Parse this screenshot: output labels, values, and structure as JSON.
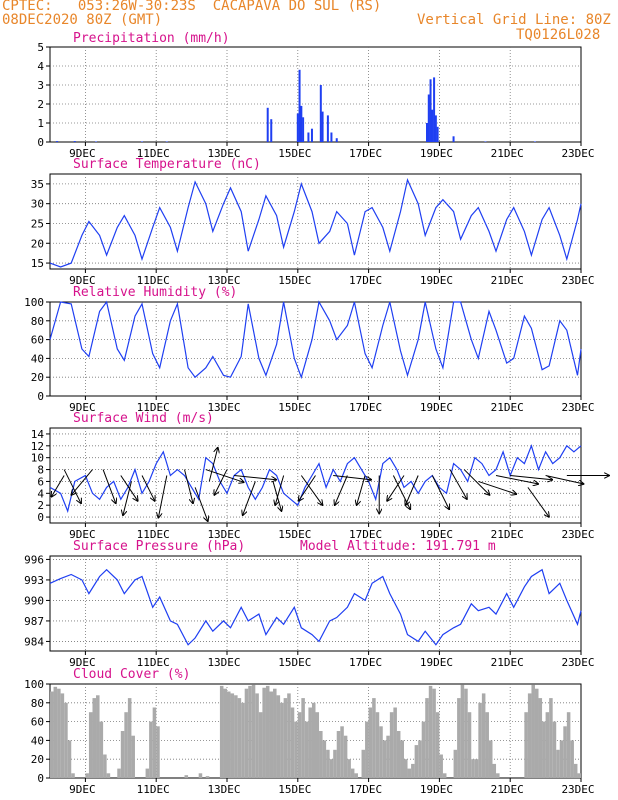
{
  "header": {
    "line1": "CPTEC:   053:26W-30:23S  CACAPAVA DO SUL (RS)",
    "line2_left": "08DEC2020 80Z (GMT)",
    "line2_right": "Vertical Grid Line: 80Z",
    "line3_right": "TQ0126L028"
  },
  "x_ticks": [
    "9DEC",
    "11DEC",
    "13DEC",
    "15DEC",
    "17DEC",
    "19DEC",
    "21DEC",
    "23DEC"
  ],
  "chart_data": [
    {
      "type": "bar",
      "title": "Precipitation (mm/h)",
      "ylim": [
        0,
        5
      ],
      "yticks": [
        "0",
        "1",
        "2",
        "3",
        "4",
        "5"
      ],
      "color": "#1f3ff2",
      "grid": true,
      "values": [
        [
          8.2,
          0.05
        ],
        [
          8.7,
          0.05
        ],
        [
          9.3,
          0.03
        ],
        [
          10.6,
          0.03
        ],
        [
          11.3,
          0.03
        ],
        [
          14.15,
          1.8
        ],
        [
          14.25,
          1.2
        ],
        [
          15.0,
          1.5
        ],
        [
          15.05,
          3.8
        ],
        [
          15.1,
          1.9
        ],
        [
          15.15,
          1.3
        ],
        [
          15.3,
          0.5
        ],
        [
          15.4,
          0.7
        ],
        [
          15.65,
          3.0
        ],
        [
          15.7,
          1.6
        ],
        [
          15.85,
          1.4
        ],
        [
          15.95,
          0.5
        ],
        [
          16.1,
          0.2
        ],
        [
          18.65,
          1.0
        ],
        [
          18.7,
          2.5
        ],
        [
          18.75,
          3.3
        ],
        [
          18.8,
          1.7
        ],
        [
          18.85,
          3.4
        ],
        [
          18.9,
          1.4
        ],
        [
          18.95,
          0.8
        ],
        [
          19.4,
          0.3
        ],
        [
          20.3,
          0.03
        ],
        [
          21.7,
          0.03
        ]
      ]
    },
    {
      "type": "line",
      "title": "Surface Temperature (nC)",
      "ylim": [
        13.5,
        37.5
      ],
      "yticks": [
        "15",
        "20",
        "25",
        "30",
        "35"
      ],
      "color": "#1f3ff2",
      "grid": true,
      "x": [
        8.0,
        8.3,
        8.6,
        8.9,
        9.1,
        9.4,
        9.6,
        9.9,
        10.1,
        10.4,
        10.6,
        10.9,
        11.1,
        11.4,
        11.6,
        11.9,
        12.1,
        12.4,
        12.6,
        12.9,
        13.1,
        13.4,
        13.6,
        13.9,
        14.1,
        14.4,
        14.6,
        14.9,
        15.1,
        15.4,
        15.6,
        15.9,
        16.1,
        16.4,
        16.6,
        16.9,
        17.1,
        17.4,
        17.6,
        17.9,
        18.1,
        18.4,
        18.6,
        18.9,
        19.1,
        19.4,
        19.6,
        19.9,
        20.1,
        20.4,
        20.6,
        20.9,
        21.1,
        21.4,
        21.6,
        21.9,
        22.1,
        22.4,
        22.6,
        22.9,
        23.0
      ],
      "y": [
        15,
        14,
        15,
        22,
        25.5,
        22,
        17,
        24,
        27,
        22,
        16,
        24,
        29,
        24,
        18,
        29,
        35.5,
        30,
        23,
        30,
        34,
        28,
        18,
        26,
        32,
        27,
        19,
        28,
        35,
        28,
        20,
        23,
        28,
        25,
        17,
        28,
        29,
        24,
        18,
        28,
        36,
        30,
        22,
        29,
        31,
        28,
        21,
        27,
        29,
        23,
        18,
        26,
        29,
        23,
        17,
        26,
        29,
        22,
        16,
        26,
        30
      ]
    },
    {
      "type": "line",
      "title": "Relative Humidity (%)",
      "ylim": [
        0,
        100
      ],
      "yticks": [
        "0",
        "20",
        "40",
        "60",
        "80",
        "100"
      ],
      "color": "#1f3ff2",
      "grid": true,
      "x": [
        8.0,
        8.3,
        8.6,
        8.9,
        9.1,
        9.4,
        9.6,
        9.9,
        10.1,
        10.4,
        10.6,
        10.9,
        11.1,
        11.4,
        11.6,
        11.9,
        12.1,
        12.4,
        12.6,
        12.9,
        13.1,
        13.4,
        13.6,
        13.9,
        14.1,
        14.4,
        14.6,
        14.9,
        15.1,
        15.4,
        15.6,
        15.9,
        16.1,
        16.4,
        16.6,
        16.9,
        17.1,
        17.4,
        17.6,
        17.9,
        18.1,
        18.4,
        18.6,
        18.9,
        19.1,
        19.4,
        19.6,
        19.9,
        20.1,
        20.4,
        20.6,
        20.9,
        21.1,
        21.4,
        21.6,
        21.9,
        22.1,
        22.4,
        22.6,
        22.9,
        23.0
      ],
      "y": [
        60,
        100,
        98,
        50,
        42,
        90,
        100,
        50,
        38,
        85,
        98,
        45,
        30,
        80,
        98,
        30,
        20,
        30,
        42,
        22,
        20,
        42,
        98,
        40,
        22,
        55,
        100,
        40,
        20,
        60,
        100,
        80,
        60,
        75,
        100,
        45,
        30,
        75,
        100,
        48,
        22,
        60,
        100,
        50,
        30,
        100,
        100,
        60,
        40,
        90,
        70,
        35,
        40,
        85,
        72,
        28,
        32,
        80,
        70,
        22,
        50
      ]
    },
    {
      "type": "line",
      "title": "Surface Wind (m/s)",
      "ylim": [
        -1,
        15
      ],
      "yticks": [
        "0",
        "2",
        "4",
        "6",
        "8",
        "10",
        "12",
        "14"
      ],
      "color": "#1f3ff2",
      "grid": true,
      "x": [
        8.0,
        8.3,
        8.5,
        8.7,
        9.0,
        9.2,
        9.4,
        9.6,
        9.8,
        10.0,
        10.2,
        10.4,
        10.6,
        10.8,
        11.0,
        11.2,
        11.4,
        11.6,
        11.8,
        12.0,
        12.2,
        12.4,
        12.6,
        12.8,
        13.0,
        13.2,
        13.4,
        13.6,
        13.8,
        14.0,
        14.2,
        14.4,
        14.6,
        14.8,
        15.0,
        15.2,
        15.4,
        15.6,
        15.8,
        16.0,
        16.2,
        16.4,
        16.6,
        16.8,
        17.0,
        17.2,
        17.4,
        17.6,
        17.8,
        18.0,
        18.2,
        18.4,
        18.6,
        18.8,
        19.0,
        19.2,
        19.4,
        19.6,
        19.8,
        20.0,
        20.2,
        20.4,
        20.6,
        20.8,
        21.0,
        21.2,
        21.4,
        21.6,
        21.8,
        22.0,
        22.2,
        22.4,
        22.6,
        22.8,
        23.0
      ],
      "y": [
        5,
        4,
        1,
        6,
        7,
        4,
        3,
        5,
        6,
        3,
        5,
        8,
        4,
        6,
        9,
        11,
        7,
        8,
        7,
        5,
        3,
        10,
        9,
        6,
        4,
        7,
        8,
        5,
        3,
        5,
        8,
        7,
        4,
        3,
        2,
        5,
        7,
        9,
        5,
        8,
        6,
        9,
        10,
        8,
        6,
        3,
        9,
        10,
        8,
        5,
        6,
        4,
        6,
        7,
        5,
        4,
        9,
        8,
        6,
        10,
        9,
        7,
        8,
        11,
        7,
        10,
        9,
        12,
        8,
        11,
        9,
        10,
        12,
        11,
        12
      ],
      "vectors": [
        [
          8.4,
          7,
          -0.3,
          -0.5
        ],
        [
          8.4,
          8,
          0.4,
          -0.8
        ],
        [
          9.2,
          8,
          -0.5,
          -0.6
        ],
        [
          9.5,
          8,
          0.3,
          -0.8
        ],
        [
          10.0,
          7,
          0.4,
          -0.6
        ],
        [
          10.3,
          6,
          -0.2,
          -0.8
        ],
        [
          10.6,
          7,
          0.3,
          -0.6
        ],
        [
          11.3,
          7,
          -0.2,
          -1.0
        ],
        [
          11.8,
          8,
          0.2,
          -0.8
        ],
        [
          12.1,
          5,
          0.3,
          -0.8
        ],
        [
          12.4,
          8,
          0.9,
          -0.3
        ],
        [
          12.5,
          6,
          0.2,
          0.8
        ],
        [
          13.0,
          8,
          -0.3,
          -0.6
        ],
        [
          13.2,
          7,
          1.0,
          -0.1
        ],
        [
          13.8,
          6,
          -0.3,
          -0.8
        ],
        [
          14.3,
          6,
          0.2,
          -0.7
        ],
        [
          14.6,
          7,
          -0.2,
          -0.7
        ],
        [
          15.1,
          7,
          0.5,
          -0.7
        ],
        [
          15.5,
          7,
          -0.4,
          -0.6
        ],
        [
          16.0,
          7,
          0.9,
          -0.1
        ],
        [
          16.4,
          7,
          -0.3,
          -0.7
        ],
        [
          16.9,
          7,
          -0.2,
          -0.7
        ],
        [
          17.3,
          7,
          0.0,
          -0.9
        ],
        [
          17.7,
          7,
          0.4,
          -0.8
        ],
        [
          18.0,
          7,
          -0.4,
          -0.6
        ],
        [
          18.4,
          7,
          -0.3,
          -0.7
        ],
        [
          18.8,
          7,
          0.4,
          -0.8
        ],
        [
          19.3,
          8,
          0.4,
          -0.7
        ],
        [
          19.7,
          8,
          0.6,
          -0.6
        ],
        [
          20.1,
          6,
          0.9,
          -0.3
        ],
        [
          20.6,
          7,
          1.0,
          -0.2
        ],
        [
          21.0,
          7,
          1.0,
          -0.1
        ],
        [
          21.5,
          5,
          0.5,
          -0.7
        ],
        [
          22.0,
          7,
          0.9,
          -0.2
        ],
        [
          22.6,
          7,
          1.0,
          0.0
        ]
      ]
    },
    {
      "type": "line",
      "title": "Surface Pressure (hPa)",
      "annotation": "Model Altitude: 191.791 m",
      "ylim": [
        982.6,
        996.5
      ],
      "yticks": [
        "984",
        "987",
        "990",
        "993",
        "996"
      ],
      "color": "#1f3ff2",
      "grid": true,
      "x": [
        8.0,
        8.3,
        8.6,
        8.9,
        9.1,
        9.4,
        9.6,
        9.9,
        10.1,
        10.4,
        10.6,
        10.9,
        11.1,
        11.4,
        11.6,
        11.9,
        12.1,
        12.4,
        12.6,
        12.9,
        13.1,
        13.4,
        13.6,
        13.9,
        14.1,
        14.4,
        14.6,
        14.9,
        15.1,
        15.4,
        15.6,
        15.9,
        16.1,
        16.4,
        16.6,
        16.9,
        17.1,
        17.4,
        17.6,
        17.9,
        18.1,
        18.4,
        18.6,
        18.9,
        19.1,
        19.4,
        19.6,
        19.9,
        20.1,
        20.4,
        20.6,
        20.9,
        21.1,
        21.4,
        21.6,
        21.9,
        22.1,
        22.4,
        22.6,
        22.9,
        23.0
      ],
      "y": [
        992.5,
        993.2,
        993.8,
        993.0,
        991.0,
        993.5,
        994.5,
        993.0,
        991.0,
        993.0,
        993.5,
        989.0,
        990.5,
        987.0,
        986.5,
        983.5,
        984.5,
        987.0,
        985.5,
        987.0,
        986.0,
        989.0,
        987.0,
        988.0,
        985.0,
        987.5,
        986.5,
        989.0,
        986.0,
        985.0,
        984.0,
        987.0,
        987.5,
        989.0,
        991.0,
        990.0,
        992.5,
        993.5,
        991.0,
        988.0,
        985.0,
        984.0,
        985.5,
        983.5,
        985.0,
        986.0,
        986.5,
        989.5,
        988.5,
        989.0,
        988.0,
        991.0,
        989.0,
        992.0,
        993.5,
        994.5,
        991.0,
        992.5,
        990.0,
        986.5,
        988.5
      ]
    },
    {
      "type": "bar",
      "title": "Cloud Cover (%)",
      "ylim": [
        0,
        100
      ],
      "yticks": [
        "0",
        "20",
        "40",
        "60",
        "80",
        "100"
      ],
      "color": "#aaaaaa",
      "grid": true,
      "x": [
        8.0,
        8.1,
        8.2,
        8.3,
        8.4,
        8.5,
        8.6,
        8.7,
        8.8,
        8.9,
        9.0,
        9.1,
        9.2,
        9.3,
        9.4,
        9.5,
        9.6,
        9.7,
        9.8,
        9.9,
        10.0,
        10.1,
        10.2,
        10.3,
        10.4,
        10.5,
        10.6,
        10.7,
        10.8,
        10.9,
        11.0,
        11.1,
        11.2,
        11.3,
        11.4,
        11.5,
        11.6,
        11.7,
        11.8,
        11.9,
        12.0,
        12.1,
        12.2,
        12.3,
        12.4,
        12.5,
        12.6,
        12.7,
        12.8,
        12.9,
        13.0,
        13.1,
        13.2,
        13.3,
        13.4,
        13.5,
        13.6,
        13.7,
        13.8,
        13.9,
        14.0,
        14.1,
        14.2,
        14.3,
        14.4,
        14.5,
        14.6,
        14.7,
        14.8,
        14.9,
        15.0,
        15.1,
        15.2,
        15.3,
        15.4,
        15.5,
        15.6,
        15.7,
        15.8,
        15.9,
        16.0,
        16.1,
        16.2,
        16.3,
        16.4,
        16.5,
        16.6,
        16.7,
        16.8,
        16.9,
        17.0,
        17.1,
        17.2,
        17.3,
        17.4,
        17.5,
        17.6,
        17.7,
        17.8,
        17.9,
        18.0,
        18.1,
        18.2,
        18.3,
        18.4,
        18.5,
        18.6,
        18.7,
        18.8,
        18.9,
        19.0,
        19.1,
        19.2,
        19.3,
        19.4,
        19.5,
        19.6,
        19.7,
        19.8,
        19.9,
        20.0,
        20.1,
        20.2,
        20.3,
        20.4,
        20.5,
        20.6,
        20.7,
        20.8,
        20.9,
        21.0,
        21.1,
        21.2,
        21.3,
        21.4,
        21.5,
        21.6,
        21.7,
        21.8,
        21.9,
        22.0,
        22.1,
        22.2,
        22.3,
        22.4,
        22.5,
        22.6,
        22.7,
        22.8,
        22.9
      ],
      "values": [
        92,
        97,
        95,
        90,
        80,
        40,
        5,
        0,
        0,
        0,
        5,
        70,
        85,
        88,
        60,
        25,
        5,
        0,
        0,
        10,
        50,
        70,
        85,
        45,
        0,
        0,
        0,
        10,
        60,
        75,
        55,
        0,
        0,
        0,
        0,
        0,
        0,
        0,
        3,
        0,
        0,
        0,
        5,
        0,
        2,
        0,
        0,
        0,
        98,
        95,
        92,
        90,
        88,
        85,
        80,
        95,
        98,
        99,
        90,
        70,
        96,
        98,
        92,
        95,
        88,
        80,
        85,
        90,
        75,
        60,
        70,
        85,
        60,
        75,
        80,
        70,
        50,
        40,
        30,
        20,
        30,
        50,
        55,
        45,
        20,
        10,
        5,
        0,
        30,
        60,
        75,
        85,
        70,
        55,
        40,
        45,
        70,
        75,
        50,
        40,
        20,
        10,
        15,
        35,
        40,
        60,
        85,
        98,
        95,
        70,
        25,
        5,
        0,
        0,
        30,
        85,
        99,
        95,
        70,
        20,
        20,
        80,
        90,
        70,
        40,
        15,
        5,
        0,
        0,
        0,
        0,
        0,
        0,
        0,
        70,
        90,
        99,
        95,
        85,
        60,
        70,
        85,
        60,
        30,
        40,
        55,
        70,
        40,
        15,
        5
      ]
    }
  ]
}
